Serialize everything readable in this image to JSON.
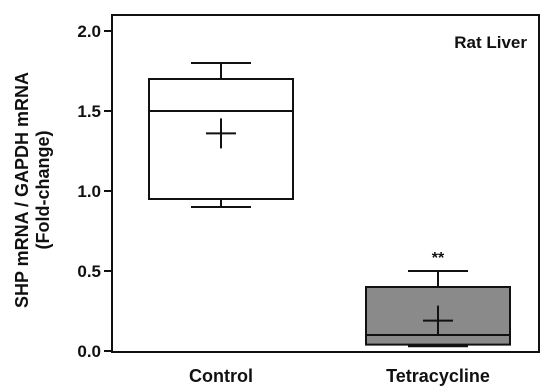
{
  "chart_data": {
    "type": "box",
    "annotation": "Rat Liver",
    "ylabel_line1": "SHP mRNA / GAPDH mRNA",
    "ylabel_line2": "(Fold-change)",
    "xlabel": "",
    "ylim": [
      0,
      2.0
    ],
    "yticks": [
      "0.0",
      "0.5",
      "1.0",
      "1.5",
      "2.0"
    ],
    "grid": false,
    "categories": [
      "Control",
      "Tetracycline"
    ],
    "boxes": [
      {
        "category": "Control",
        "min": 0.9,
        "q1": 0.95,
        "median": 1.5,
        "q3": 1.7,
        "max": 1.8,
        "mean": 1.36,
        "fill": "#ffffff",
        "significance": ""
      },
      {
        "category": "Tetracycline",
        "min": 0.03,
        "q1": 0.04,
        "median": 0.1,
        "q3": 0.4,
        "max": 0.5,
        "mean": 0.19,
        "fill": "#8a8a8a",
        "significance": "**"
      }
    ]
  }
}
